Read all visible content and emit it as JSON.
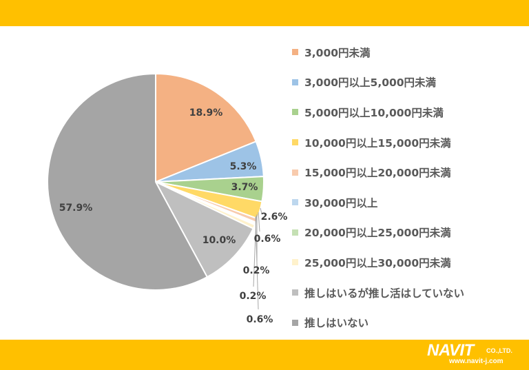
{
  "colors": {
    "band": "#FFC000",
    "label_text": "#404040",
    "leader": "#A6A6A6",
    "slice_border": "#FFFFFF"
  },
  "chart_data": {
    "type": "pie",
    "start_angle_deg": 0,
    "direction": "clockwise",
    "legend_position": "right",
    "slices": [
      {
        "label": "3,000円未満",
        "value": 18.9,
        "value_label": "18.9%",
        "color": "#F4B183"
      },
      {
        "label": "3,000円以上5,000円未満",
        "value": 5.3,
        "value_label": "5.3%",
        "color": "#9DC3E6"
      },
      {
        "label": "5,000円以上10,000円未満",
        "value": 3.7,
        "value_label": "3.7%",
        "color": "#A9D18E"
      },
      {
        "label": "10,000円以上15,000円未満",
        "value": 2.6,
        "value_label": "2.6%",
        "color": "#FFD966"
      },
      {
        "label": "15,000円以上20,000円未満",
        "value": 0.6,
        "value_label": "0.6%",
        "color": "#F8CBAD"
      },
      {
        "label": "30,000円以上",
        "value": 0.2,
        "value_label": "0.2%",
        "color": "#BDD7EE"
      },
      {
        "label": "20,000円以上25,000円未満",
        "value": 0.2,
        "value_label": "0.2%",
        "color": "#C5E0B4"
      },
      {
        "label": "25,000円以上30,000円未満",
        "value": 0.6,
        "value_label": "0.6%",
        "color": "#FFF2CC"
      },
      {
        "label": "推しはいるが推し活はしていない",
        "value": 10.0,
        "value_label": "10.0%",
        "color": "#BFBFBF"
      },
      {
        "label": "推しはいない",
        "value": 57.9,
        "value_label": "57.9%",
        "color": "#A5A5A5"
      }
    ]
  },
  "logo": {
    "name": "NAVIT",
    "suffix": "CO.,LTD.",
    "url": "www.navit-j.com"
  }
}
